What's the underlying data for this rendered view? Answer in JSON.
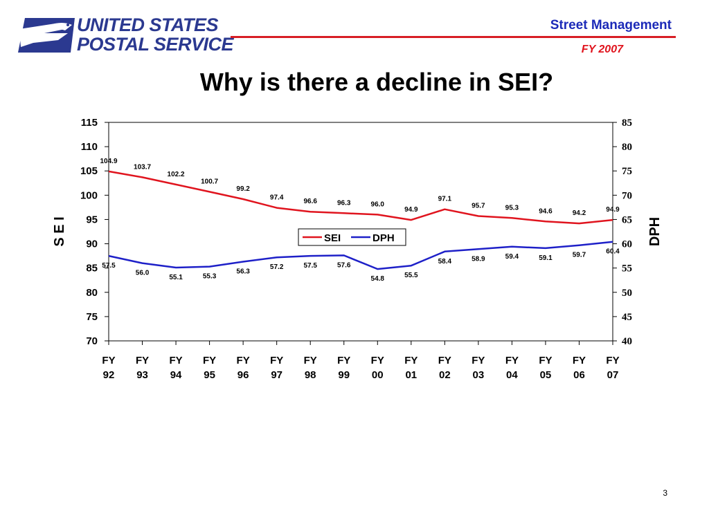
{
  "header": {
    "logo_line1": "UNITED STATES",
    "logo_line2": "POSTAL SERVICE",
    "brand_title": "Street Management",
    "fiscal_year": "FY 2007",
    "accent_blue": "#2b3990",
    "accent_red": "#d81e25"
  },
  "slide": {
    "title": "Why is there a decline in SEI?",
    "page_number": "3"
  },
  "chart_data": {
    "type": "line",
    "title": "",
    "categories": [
      "FY 92",
      "FY 93",
      "FY 94",
      "FY 95",
      "FY 96",
      "FY 97",
      "FY 98",
      "FY 99",
      "FY 00",
      "FY 01",
      "FY 02",
      "FY 03",
      "FY 04",
      "FY 05",
      "FY 06",
      "FY 07"
    ],
    "y_left": {
      "label": "S E I",
      "min": 70,
      "max": 115,
      "ticks": [
        70,
        75,
        80,
        85,
        90,
        95,
        100,
        105,
        110,
        115
      ]
    },
    "y_right": {
      "label": "DPH",
      "min": 40,
      "max": 85,
      "ticks": [
        40,
        45,
        50,
        55,
        60,
        65,
        70,
        75,
        80,
        85
      ]
    },
    "series": [
      {
        "name": "SEI",
        "axis": "left",
        "color": "#e0141e",
        "values": [
          104.9,
          103.7,
          102.2,
          100.7,
          99.2,
          97.4,
          96.6,
          96.3,
          96.0,
          94.9,
          97.1,
          95.7,
          95.3,
          94.6,
          94.2,
          94.9
        ],
        "labels": [
          "104.9",
          "103.7",
          "102.2",
          "100.7",
          "99.2",
          "97.4",
          "96.6",
          "96.3",
          "96.0",
          "94.9",
          "97.1",
          "95.7",
          "95.3",
          "94.6",
          "94.2",
          "94.9"
        ]
      },
      {
        "name": "DPH",
        "axis": "right",
        "color": "#1e20c8",
        "values": [
          57.5,
          56.0,
          55.1,
          55.3,
          56.3,
          57.2,
          57.5,
          57.6,
          54.8,
          55.5,
          58.4,
          58.9,
          59.4,
          59.1,
          59.7,
          60.4
        ],
        "labels": [
          "57.5",
          "56.0",
          "55.1",
          "55.3",
          "56.3",
          "57.2",
          "57.5",
          "57.6",
          "54.8",
          "55.5",
          "58.4",
          "58.9",
          "59.4",
          "59.1",
          "59.7",
          "60.4"
        ]
      }
    ],
    "legend": "center",
    "grid": false
  }
}
